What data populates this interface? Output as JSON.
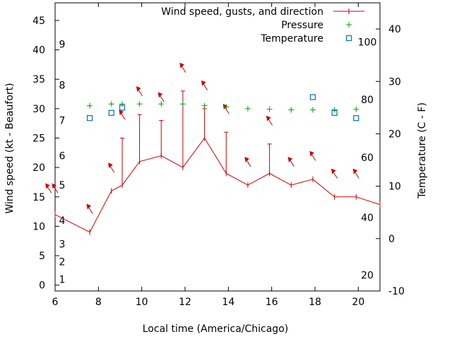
{
  "chart_data": {
    "type": "line",
    "xlabel": "Local time (America/Chicago)",
    "ylabel": "Wind speed (kt - Beaufort)",
    "y2label": "Temperature (C - F)",
    "xlim": [
      6,
      21
    ],
    "ylim": [
      -1,
      48
    ],
    "y2lim": [
      -10,
      45
    ],
    "x_ticks": [
      6,
      8,
      10,
      12,
      14,
      16,
      18,
      20
    ],
    "y_ticks": [
      0,
      5,
      10,
      15,
      20,
      25,
      30,
      35,
      40,
      45
    ],
    "y2_ticks": [
      -10,
      0,
      10,
      20,
      30,
      40
    ],
    "beaufort_labels": [
      {
        "label": "1",
        "y": 1
      },
      {
        "label": "2",
        "y": 4
      },
      {
        "label": "3",
        "y": 7
      },
      {
        "label": "4",
        "y": 11
      },
      {
        "label": "5",
        "y": 17
      },
      {
        "label": "6",
        "y": 22
      },
      {
        "label": "7",
        "y": 28
      },
      {
        "label": "8",
        "y": 34
      },
      {
        "label": "9",
        "y": 41
      }
    ],
    "fahrenheit_labels": [
      {
        "label": "20",
        "y2": -7
      },
      {
        "label": "40",
        "y2": 4
      },
      {
        "label": "60",
        "y2": 15.5
      },
      {
        "label": "80",
        "y2": 26.5
      },
      {
        "label": "100",
        "y2": 37.5
      }
    ],
    "legend": [
      {
        "label": "Wind speed, gusts, and direction",
        "marker": "line-cross",
        "color": "#cc0000"
      },
      {
        "label": "Pressure",
        "marker": "plus",
        "color": "#00a000"
      },
      {
        "label": "Temperature",
        "marker": "square",
        "color": "#0070c0"
      }
    ],
    "legend_position": "top-right",
    "series": [
      {
        "name": "Wind speed, gusts, and direction",
        "points": [
          {
            "x": 6.0,
            "speed": 12,
            "gust": null,
            "dir": 0
          },
          {
            "x": 7.6,
            "speed": 9,
            "gust": null,
            "dir": 0
          },
          {
            "x": 8.6,
            "speed": 16,
            "gust": null,
            "dir": 0
          },
          {
            "x": 9.1,
            "speed": 17,
            "gust": 25,
            "dir": 0
          },
          {
            "x": 9.9,
            "speed": 21,
            "gust": 29,
            "dir": 0
          },
          {
            "x": 10.9,
            "speed": 22,
            "gust": 28,
            "dir": 0
          },
          {
            "x": 11.9,
            "speed": 20,
            "gust": 33,
            "dir": 0
          },
          {
            "x": 12.9,
            "speed": 25,
            "gust": 30,
            "dir": 0
          },
          {
            "x": 13.9,
            "speed": 19,
            "gust": 26,
            "dir": 0
          },
          {
            "x": 14.9,
            "speed": 17,
            "gust": null,
            "dir": 0
          },
          {
            "x": 15.9,
            "speed": 19,
            "gust": 24,
            "dir": 0
          },
          {
            "x": 16.9,
            "speed": 17,
            "gust": null,
            "dir": 0
          },
          {
            "x": 17.9,
            "speed": 18,
            "gust": null,
            "dir": 0
          },
          {
            "x": 18.9,
            "speed": 15,
            "gust": null,
            "dir": 0
          },
          {
            "x": 19.9,
            "speed": 15,
            "gust": null,
            "dir": 0
          },
          {
            "x": 21.0,
            "speed": 13.7,
            "gust": null,
            "dir": 0
          }
        ]
      },
      {
        "name": "Pressure",
        "points": [
          {
            "x": 7.6,
            "y": 30.5
          },
          {
            "x": 8.6,
            "y": 30.8
          },
          {
            "x": 9.1,
            "y": 30.8
          },
          {
            "x": 9.9,
            "y": 30.8
          },
          {
            "x": 10.9,
            "y": 30.8
          },
          {
            "x": 11.9,
            "y": 30.8
          },
          {
            "x": 12.9,
            "y": 30.5
          },
          {
            "x": 13.9,
            "y": 30.3
          },
          {
            "x": 14.9,
            "y": 30.0
          },
          {
            "x": 15.9,
            "y": 29.9
          },
          {
            "x": 16.9,
            "y": 29.8
          },
          {
            "x": 17.9,
            "y": 29.8
          },
          {
            "x": 18.9,
            "y": 29.8
          },
          {
            "x": 19.9,
            "y": 29.9
          }
        ]
      },
      {
        "name": "Temperature",
        "points": [
          {
            "x": 7.6,
            "y2": 23
          },
          {
            "x": 8.6,
            "y2": 24
          },
          {
            "x": 9.1,
            "y2": 25
          },
          {
            "x": 17.9,
            "y2": 27
          },
          {
            "x": 18.9,
            "y2": 24
          },
          {
            "x": 19.9,
            "y2": 23
          }
        ]
      }
    ],
    "wind_arrows": [
      {
        "x": 5.7,
        "y": 16.5
      },
      {
        "x": 6.0,
        "y": 16.5
      },
      {
        "x": 7.6,
        "y": 13
      },
      {
        "x": 8.6,
        "y": 20
      },
      {
        "x": 9.1,
        "y": 29
      },
      {
        "x": 9.9,
        "y": 33
      },
      {
        "x": 10.9,
        "y": 32
      },
      {
        "x": 11.9,
        "y": 37
      },
      {
        "x": 12.9,
        "y": 34
      },
      {
        "x": 13.9,
        "y": 30
      },
      {
        "x": 14.9,
        "y": 21
      },
      {
        "x": 15.9,
        "y": 28
      },
      {
        "x": 16.9,
        "y": 21
      },
      {
        "x": 17.9,
        "y": 22
      },
      {
        "x": 18.9,
        "y": 19
      },
      {
        "x": 19.9,
        "y": 19
      }
    ]
  }
}
